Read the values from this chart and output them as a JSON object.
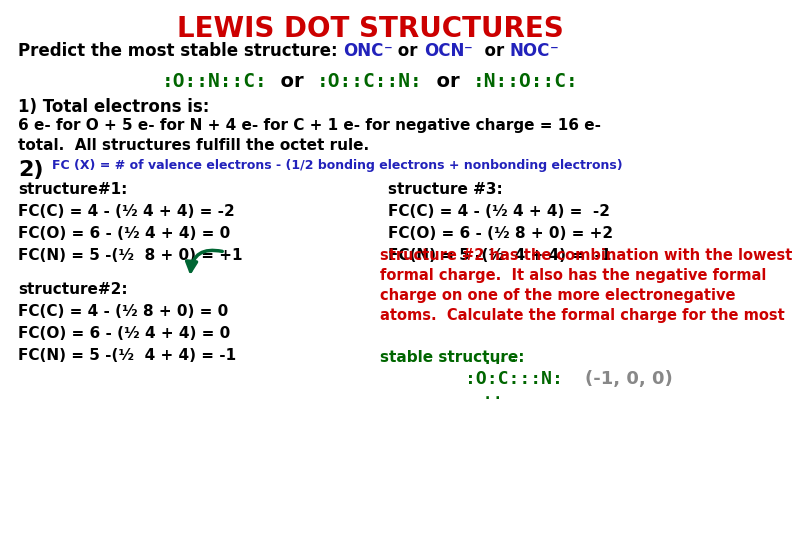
{
  "title": "LEWIS DOT STRUCTURES",
  "title_color": "#cc0000",
  "bg_color": "#ffffff",
  "title_fontsize": 20,
  "line2_prefix": "Predict the most stable structure: ",
  "line2_segments": [
    [
      "ONC",
      "#2222bb"
    ],
    [
      "⁻",
      "#2222bb"
    ],
    [
      " or ",
      "black"
    ],
    [
      "OCN",
      "#2222bb"
    ],
    [
      "⁻",
      "#2222bb"
    ],
    [
      "  or ",
      "black"
    ],
    [
      "NOC",
      "#2222bb"
    ],
    [
      "⁻",
      "#2222bb"
    ]
  ],
  "line2_fontsize": 12,
  "lewis_line": [
    [
      ":O::N::C:",
      "#006600"
    ],
    [
      "  or  ",
      "black"
    ],
    [
      ":O::C::N:",
      "#006600"
    ],
    [
      "  or  ",
      "black"
    ],
    [
      ":N::O::C:",
      "#006600"
    ]
  ],
  "lewis_fontsize": 14,
  "section1_title": "1) Total electrons is:",
  "section1_text1": "6 e- for O + 5 e- for N + 4 e- for C + 1 e- for negative charge = 16 e-",
  "section1_text2": "total.  All structures fulfill the octet rule.",
  "section2_label": "2)",
  "section2_label_fontsize": 16,
  "section2_fc_def": "FC (X) = # of valence electrons - (1/2 bonding electrons + nonbonding electrons)",
  "section2_fc_fontsize": 9,
  "s1_header": "structure#1:",
  "s1_fc_c": "FC(C) = 4 - (¹⁄₂ 4 + 4) = -2",
  "s1_fc_o": "FC(O) = 6 - (¹⁄₂ 4 + 4) = 0",
  "s1_fc_n": "FC(N) = 5 -(¹⁄₂  8 + 0) = +1",
  "s3_header": "structure #3:",
  "s3_fc_c": "FC(C) = 4 - (¹⁄₂ 4 + 4) =  -2",
  "s3_fc_o": "FC(O) = 6 - (¹⁄₂ 8 + 0) = +2",
  "s3_fc_n": "FC(N) = 5 -(¹⁄₂  4 + 4) =  -1",
  "s2_header": "structure#2:",
  "s2_fc_c": "FC(C) = 4 - (¹⁄₂ 8 + 0) = 0",
  "s2_fc_o": "FC(O) = 6 - (¹⁄₂ 4 + 4) = 0",
  "s2_fc_n": "FC(N) = 5 -(¹⁄₂  4 + 4) = -1",
  "body_fontsize": 11,
  "red_text1": "structure #2 has the combination with the lowest",
  "red_text2": "formal charge.  It also has the negative formal",
  "red_text3": "charge on one of the more electronegative",
  "red_text4": "atoms.  Calculate the formal charge for the most",
  "green_stable": "stable structure:",
  "green_stable_dots": ". .",
  "green_ocn": ":O:C:::N:",
  "gray_result": "(-1, 0, 0)",
  "red_color": "#cc0000",
  "green_color": "#006600",
  "black_color": "#000000",
  "blue_color": "#2222bb",
  "gray_color": "#888888"
}
